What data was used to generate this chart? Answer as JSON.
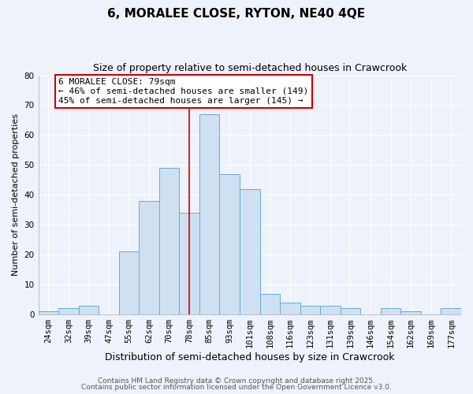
{
  "title": "6, MORALEE CLOSE, RYTON, NE40 4QE",
  "subtitle": "Size of property relative to semi-detached houses in Crawcrook",
  "xlabel": "Distribution of semi-detached houses by size in Crawcrook",
  "ylabel": "Number of semi-detached properties",
  "bar_labels": [
    "24sqm",
    "32sqm",
    "39sqm",
    "47sqm",
    "55sqm",
    "62sqm",
    "70sqm",
    "78sqm",
    "85sqm",
    "93sqm",
    "101sqm",
    "108sqm",
    "116sqm",
    "123sqm",
    "131sqm",
    "139sqm",
    "146sqm",
    "154sqm",
    "162sqm",
    "169sqm",
    "177sqm"
  ],
  "bar_values": [
    1,
    2,
    3,
    0,
    21,
    38,
    49,
    34,
    67,
    47,
    42,
    7,
    4,
    3,
    3,
    2,
    0,
    2,
    1,
    0,
    2
  ],
  "bar_color": "#cfe0f3",
  "bar_edge_color": "#6aabd2",
  "background_color": "#eef2fb",
  "grid_color": "#ffffff",
  "vline_x_index": 7,
  "vline_color": "#cc0000",
  "annotation_text": "6 MORALEE CLOSE: 79sqm\n← 46% of semi-detached houses are smaller (149)\n45% of semi-detached houses are larger (145) →",
  "annotation_box_facecolor": "#ffffff",
  "annotation_box_edgecolor": "#cc0000",
  "footer_line1": "Contains HM Land Registry data © Crown copyright and database right 2025.",
  "footer_line2": "Contains public sector information licensed under the Open Government Licence v3.0.",
  "ylim": [
    0,
    80
  ],
  "title_fontsize": 11,
  "subtitle_fontsize": 9,
  "xlabel_fontsize": 9,
  "ylabel_fontsize": 8,
  "tick_fontsize": 7.5,
  "footer_fontsize": 6.5,
  "annotation_fontsize": 8
}
